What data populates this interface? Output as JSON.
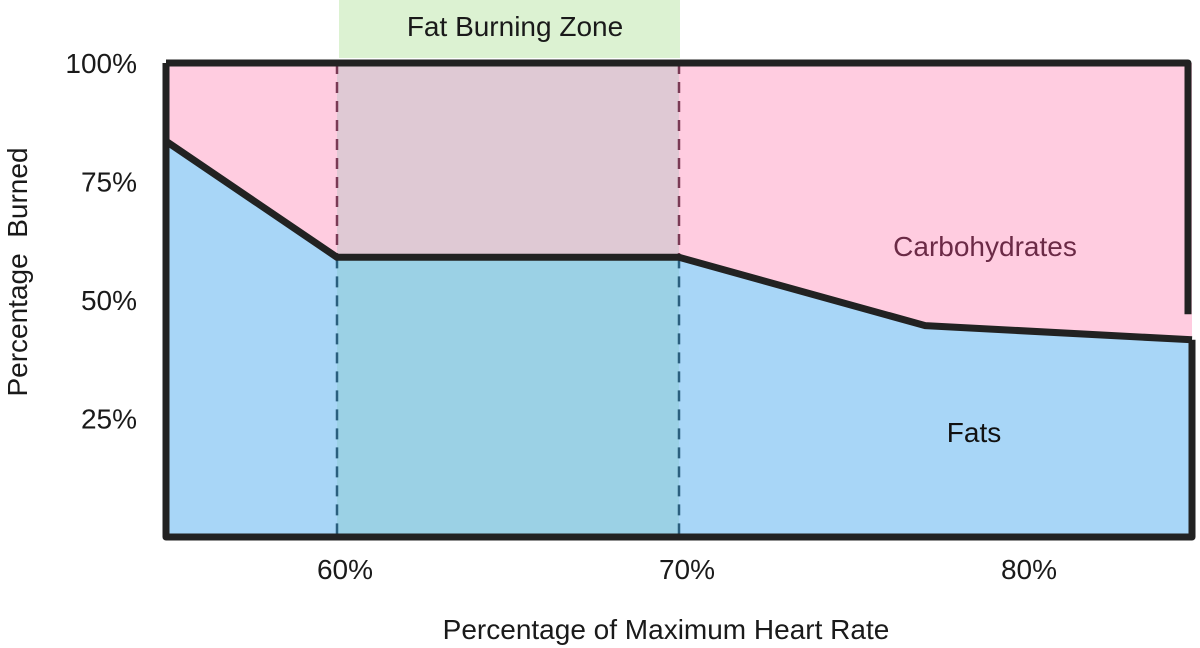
{
  "chart_data": {
    "type": "area",
    "title": "",
    "xlabel": "Percentage of Maximum Heart Rate",
    "ylabel": "Percentage  Burned",
    "x_unit": "% of max heart rate",
    "xlim": [
      55,
      85
    ],
    "ylim": [
      0,
      100
    ],
    "x_ticks": [
      60,
      70,
      80
    ],
    "x_tick_labels": [
      "60%",
      "70%",
      "80%"
    ],
    "y_ticks": [
      25,
      50,
      75,
      100
    ],
    "y_tick_labels": [
      "25%",
      "50%",
      "75%",
      "100%"
    ],
    "stacked": true,
    "series": [
      {
        "name": "Fats",
        "color": "#a8d6f7",
        "x": [
          55,
          60,
          70,
          77.2,
          85
        ],
        "values": [
          83.5,
          59,
          59,
          44.6,
          41.6
        ]
      },
      {
        "name": "Carbohydrates",
        "color": "#ffcce0",
        "x": [
          55,
          60,
          70,
          77.2,
          85
        ],
        "values": [
          16.5,
          41,
          41,
          55.4,
          58.4
        ]
      }
    ],
    "highlight_band": {
      "label": "Fat Burning Zone",
      "x_range": [
        60,
        70
      ],
      "label_color": "#dcf2d2",
      "overlay_color": "#6fc1a8"
    },
    "outline_color": "#222222",
    "grid": false,
    "legend": "none (inline area labels)"
  }
}
